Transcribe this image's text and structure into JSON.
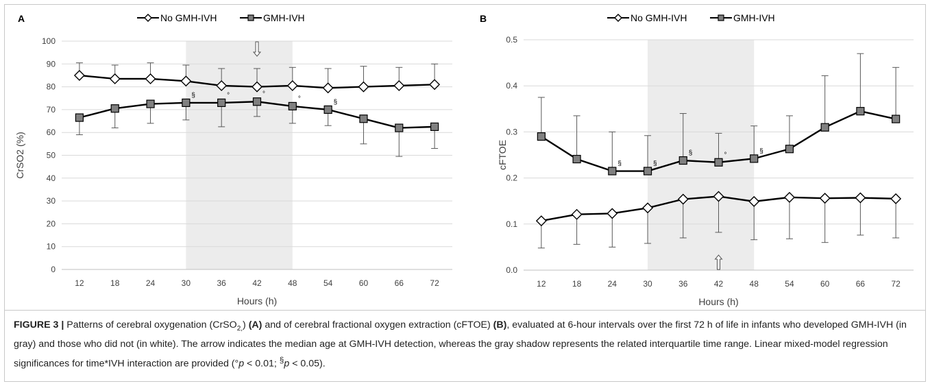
{
  "colors": {
    "shade": "#ececec",
    "grid": "#d9d9d9",
    "no_ivh_marker": "#ffffff",
    "ivh_marker": "#808080",
    "line": "#000000",
    "error_bar": "#595959"
  },
  "chart_data": [
    {
      "type": "line",
      "panel_label": "A",
      "x": [
        12,
        18,
        24,
        30,
        36,
        42,
        48,
        54,
        60,
        66,
        72
      ],
      "xlabel": "Hours (h)",
      "ylabel": "CrSO2 (%)",
      "ylim": [
        0,
        100
      ],
      "yticks": [
        "0",
        "10",
        "20",
        "30",
        "40",
        "50",
        "60",
        "70",
        "80",
        "90",
        "100"
      ],
      "shaded_range": [
        30,
        48
      ],
      "arrow_at": 42,
      "arrow_position": "top",
      "legend_placement": "top-center",
      "grid": true,
      "series": [
        {
          "name": "No GMH-IVH",
          "marker": "diamond",
          "values": [
            85,
            83.5,
            83.5,
            82.5,
            80.5,
            80,
            80.5,
            79.5,
            80,
            80.5,
            81
          ],
          "error_upper": [
            90.5,
            89.5,
            90.5,
            89.5,
            88,
            88,
            88.5,
            88,
            89,
            88.5,
            90
          ],
          "annotations": [
            "",
            "",
            "",
            "",
            "",
            "",
            "",
            "",
            "",
            "",
            ""
          ]
        },
        {
          "name": "GMH-IVH",
          "marker": "square",
          "values": [
            66.5,
            70.5,
            72.5,
            73,
            73,
            73.5,
            71.5,
            70,
            66,
            62,
            62.5
          ],
          "error_lower": [
            59,
            62,
            64,
            65.5,
            62.5,
            67,
            64,
            63,
            55,
            49.5,
            53
          ],
          "annotations": [
            "",
            "",
            "",
            "§",
            "°",
            "°",
            "°",
            "§",
            "",
            "",
            ""
          ]
        }
      ]
    },
    {
      "type": "line",
      "panel_label": "B",
      "x": [
        12,
        18,
        24,
        30,
        36,
        42,
        48,
        54,
        60,
        66,
        72
      ],
      "xlabel": "Hours (h)",
      "ylabel": "cFTOE",
      "ylim": [
        0,
        0.5
      ],
      "yticks": [
        "0.0",
        "0.1",
        "0.2",
        "0.3",
        "0.4",
        "0.5"
      ],
      "shaded_range": [
        30,
        48
      ],
      "arrow_at": 42,
      "arrow_position": "bottom",
      "legend_placement": "top-center",
      "grid": true,
      "series": [
        {
          "name": "No GMH-IVH",
          "marker": "diamond",
          "values": [
            0.107,
            0.121,
            0.123,
            0.135,
            0.154,
            0.16,
            0.149,
            0.158,
            0.156,
            0.157,
            0.155
          ],
          "error_lower": [
            0.048,
            0.056,
            0.05,
            0.058,
            0.07,
            0.082,
            0.066,
            0.068,
            0.06,
            0.076,
            0.07
          ],
          "annotations": [
            "",
            "",
            "",
            "",
            "",
            "",
            "",
            "",
            "",
            "",
            ""
          ]
        },
        {
          "name": "GMH-IVH",
          "marker": "square",
          "values": [
            0.29,
            0.241,
            0.215,
            0.215,
            0.238,
            0.234,
            0.242,
            0.263,
            0.31,
            0.345,
            0.328
          ],
          "error_upper": [
            0.375,
            0.335,
            0.3,
            0.292,
            0.34,
            0.297,
            0.313,
            0.335,
            0.422,
            0.47,
            0.44
          ],
          "annotations": [
            "",
            "",
            "§",
            "§",
            "§",
            "°",
            "§",
            "",
            "",
            "",
            ""
          ]
        }
      ]
    }
  ],
  "caption": {
    "figure_label": "FIGURE 3 |",
    "t1": " Patterns of cerebral oxygenation (CrSO",
    "t1_sub": "2,",
    "t2": ") ",
    "ref_a": "(A)",
    "t3": " and of cerebral fractional oxygen extraction (cFTOE) ",
    "ref_b": "(B)",
    "t4": ", evaluated at 6-hour intervals over the first 72 h of life in infants who developed GMH-IVH (in gray) and those who did not (in white). The arrow indicates the median age at GMH-IVH detection, whereas the gray shadow represents the related interquartile time range. Linear mixed-model regression significances for time*IVH interaction are provided (°",
    "p1": "p",
    "t5": " < 0.01; ",
    "sup_mark": "§",
    "p2": "p",
    "t6": " < 0.05)."
  }
}
